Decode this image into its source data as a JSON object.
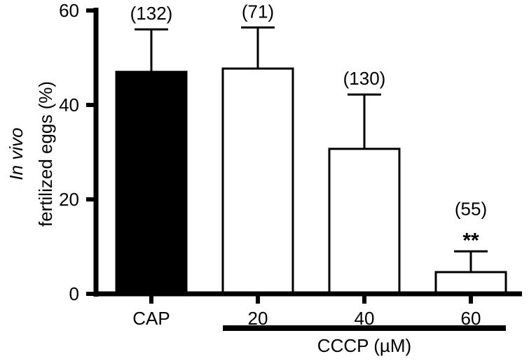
{
  "chart_data": {
    "type": "bar",
    "title": "",
    "ylabel_italic": "In vivo",
    "ylabel": "fertilized eggs (%)",
    "xlabel": "",
    "ylim": [
      0,
      60
    ],
    "yticks": [
      "0",
      "20",
      "40",
      "60"
    ],
    "categories": [
      "CAP",
      "20",
      "40",
      "60"
    ],
    "values": [
      47,
      47.7,
      30.7,
      4.6
    ],
    "errors": [
      9,
      8.7,
      11.5,
      4.4
    ],
    "sample_sizes": [
      "(132)",
      "(71)",
      "(130)",
      "(55)"
    ],
    "significance": [
      "",
      "",
      "",
      "**"
    ],
    "bar_fills": [
      "#000000",
      "#ffffff",
      "#ffffff",
      "#ffffff"
    ],
    "group_label": "CCCP (µM)",
    "group_span": [
      "20",
      "60"
    ],
    "grid": false,
    "legend": "none"
  }
}
